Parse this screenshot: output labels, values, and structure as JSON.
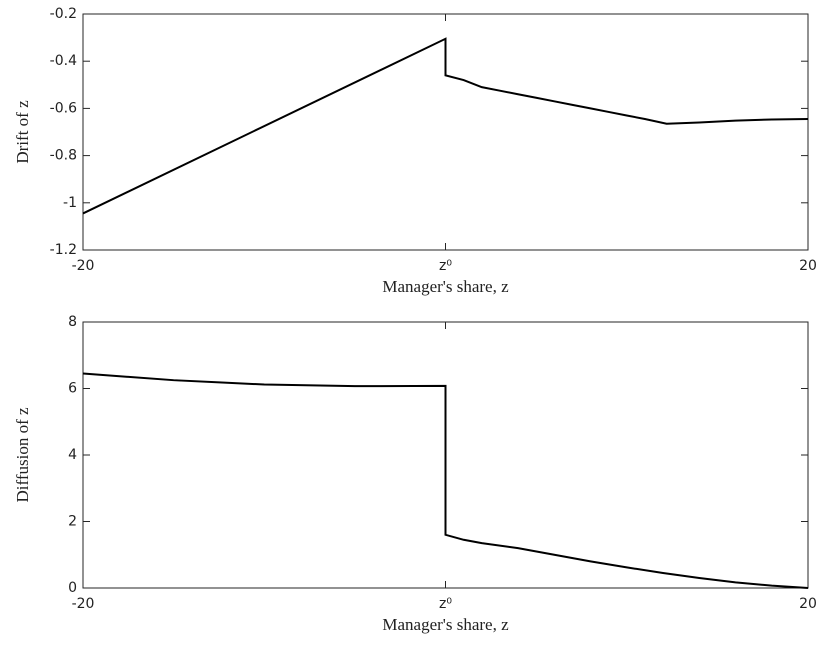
{
  "chart_data": [
    {
      "type": "line",
      "xlabel": "Manager's share, z",
      "ylabel": "Drift of z",
      "x": [
        -20,
        0,
        0,
        1,
        2,
        3,
        4,
        5,
        6,
        7,
        8,
        9,
        10,
        11,
        12.2,
        14,
        16,
        18,
        20
      ],
      "series": [
        {
          "name": "Drift",
          "color": "#000000",
          "values": [
            -1.045,
            -0.305,
            -0.46,
            -0.48,
            -0.51,
            -0.525,
            -0.54,
            -0.555,
            -0.57,
            -0.585,
            -0.6,
            -0.615,
            -0.63,
            -0.645,
            -0.665,
            -0.66,
            -0.652,
            -0.647,
            -0.645
          ]
        }
      ],
      "xlim": [
        -20,
        20
      ],
      "xticks": [
        -20,
        {
          "value": 0,
          "label": "z⁰"
        },
        20
      ],
      "ylim": [
        -1.2,
        -0.2
      ],
      "yticks": [
        -1.2,
        -1,
        -0.8,
        -0.6,
        -0.4,
        -0.2
      ]
    },
    {
      "type": "line",
      "xlabel": "Manager's share, z",
      "ylabel": "Diffusion of z",
      "x": [
        -20,
        -15,
        -10,
        -5,
        0,
        0,
        1,
        2,
        4,
        6,
        8,
        10,
        12,
        14,
        16,
        18,
        20
      ],
      "series": [
        {
          "name": "Diffusion",
          "color": "#000000",
          "values": [
            6.45,
            6.25,
            6.12,
            6.07,
            6.08,
            1.6,
            1.45,
            1.35,
            1.2,
            1.0,
            0.8,
            0.62,
            0.45,
            0.3,
            0.17,
            0.07,
            0
          ]
        }
      ],
      "xlim": [
        -20,
        20
      ],
      "xticks": [
        -20,
        {
          "value": 0,
          "label": "z⁰"
        },
        20
      ],
      "ylim": [
        0,
        8
      ],
      "yticks": [
        0,
        2,
        4,
        6,
        8
      ]
    }
  ]
}
